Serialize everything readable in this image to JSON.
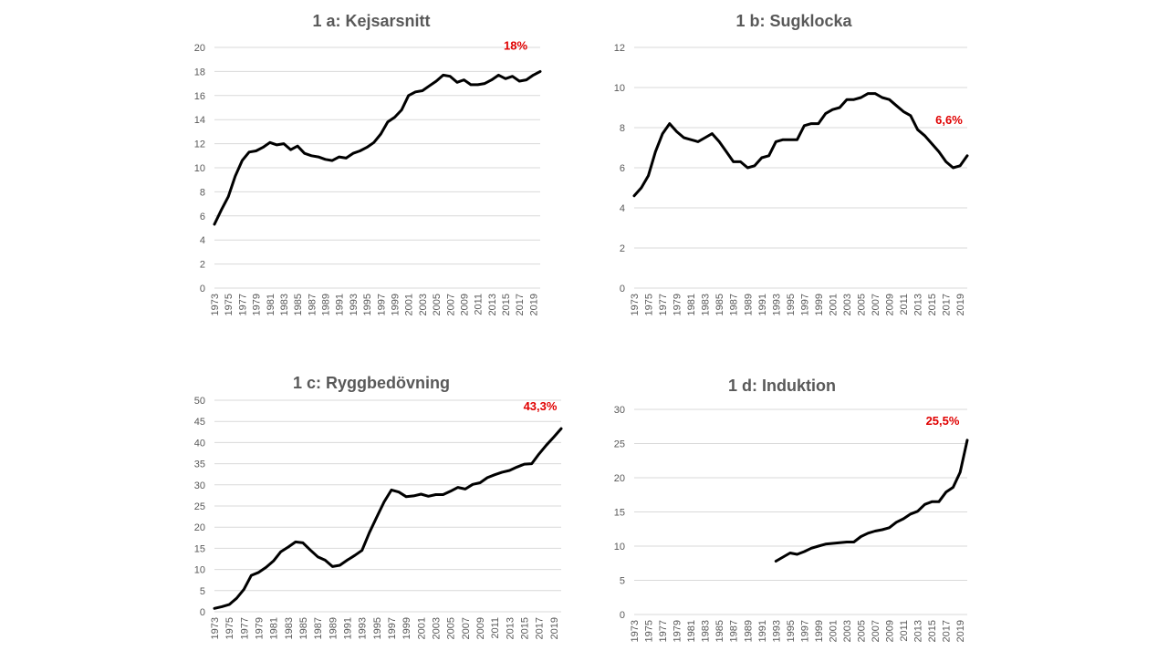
{
  "accent_color": "#e00000",
  "chart_data": [
    {
      "type": "line",
      "title": "1 a: Kejsarsnitt",
      "end_label": "18%",
      "ylim": [
        0,
        20
      ],
      "yticks": [
        0,
        2,
        4,
        6,
        8,
        10,
        12,
        14,
        16,
        18,
        20
      ],
      "xtick_labels": [
        "1973",
        "1975",
        "1977",
        "1979",
        "1981",
        "1983",
        "1985",
        "1987",
        "1989",
        "1991",
        "1993",
        "1995",
        "1997",
        "1999",
        "2001",
        "2003",
        "2005",
        "2007",
        "2009",
        "2011",
        "2013",
        "2015",
        "2017",
        "2019"
      ],
      "grid": true,
      "x": [
        1973,
        1974,
        1975,
        1976,
        1977,
        1978,
        1979,
        1980,
        1981,
        1982,
        1983,
        1984,
        1985,
        1986,
        1987,
        1988,
        1989,
        1990,
        1991,
        1992,
        1993,
        1994,
        1995,
        1996,
        1997,
        1998,
        1999,
        2000,
        2001,
        2002,
        2003,
        2004,
        2005,
        2006,
        2007,
        2008,
        2009,
        2010,
        2011,
        2012,
        2013,
        2014,
        2015,
        2016,
        2017,
        2018,
        2019,
        2020
      ],
      "values": [
        5.3,
        6.5,
        7.6,
        9.3,
        10.6,
        11.3,
        11.4,
        11.7,
        12.1,
        11.9,
        12.0,
        11.5,
        11.8,
        11.2,
        11.0,
        10.9,
        10.7,
        10.6,
        10.9,
        10.8,
        11.2,
        11.4,
        11.7,
        12.1,
        12.8,
        13.8,
        14.2,
        14.8,
        16.0,
        16.3,
        16.4,
        16.8,
        17.2,
        17.7,
        17.6,
        17.1,
        17.3,
        16.9,
        16.9,
        17.0,
        17.3,
        17.7,
        17.4,
        17.6,
        17.2,
        17.3,
        17.7,
        18.0
      ]
    },
    {
      "type": "line",
      "title": "1 b: Sugklocka",
      "end_label": "6,6%",
      "ylim": [
        0,
        12
      ],
      "yticks": [
        0,
        2,
        4,
        6,
        8,
        10,
        12
      ],
      "xtick_labels": [
        "1973",
        "1975",
        "1977",
        "1979",
        "1981",
        "1983",
        "1985",
        "1987",
        "1989",
        "1991",
        "1993",
        "1995",
        "1997",
        "1999",
        "2001",
        "2003",
        "2005",
        "2007",
        "2009",
        "2011",
        "2013",
        "2015",
        "2017",
        "2019"
      ],
      "grid": true,
      "x": [
        1973,
        1974,
        1975,
        1976,
        1977,
        1978,
        1979,
        1980,
        1981,
        1982,
        1983,
        1984,
        1985,
        1986,
        1987,
        1988,
        1989,
        1990,
        1991,
        1992,
        1993,
        1994,
        1995,
        1996,
        1997,
        1998,
        1999,
        2000,
        2001,
        2002,
        2003,
        2004,
        2005,
        2006,
        2007,
        2008,
        2009,
        2010,
        2011,
        2012,
        2013,
        2014,
        2015,
        2016,
        2017,
        2018,
        2019,
        2020
      ],
      "values": [
        4.6,
        5.0,
        5.6,
        6.8,
        7.7,
        8.2,
        7.8,
        7.5,
        7.4,
        7.3,
        7.5,
        7.7,
        7.3,
        6.8,
        6.3,
        6.3,
        6.0,
        6.1,
        6.5,
        6.6,
        7.3,
        7.4,
        7.4,
        7.4,
        8.1,
        8.2,
        8.2,
        8.7,
        8.9,
        9.0,
        9.4,
        9.4,
        9.5,
        9.7,
        9.7,
        9.5,
        9.4,
        9.1,
        8.8,
        8.6,
        7.9,
        7.6,
        7.2,
        6.8,
        6.3,
        6.0,
        6.1,
        6.6
      ]
    },
    {
      "type": "line",
      "title": "1 c: Ryggbedövning",
      "end_label": "43,3%",
      "ylim": [
        0,
        50
      ],
      "yticks": [
        0,
        5,
        10,
        15,
        20,
        25,
        30,
        35,
        40,
        45,
        50
      ],
      "xtick_labels": [
        "1973",
        "1975",
        "1977",
        "1979",
        "1981",
        "1983",
        "1985",
        "1987",
        "1989",
        "1991",
        "1993",
        "1995",
        "1997",
        "1999",
        "2001",
        "2003",
        "2005",
        "2007",
        "2009",
        "2011",
        "2013",
        "2015",
        "2017",
        "2019"
      ],
      "grid": true,
      "x": [
        1973,
        1974,
        1975,
        1976,
        1977,
        1978,
        1979,
        1980,
        1981,
        1982,
        1983,
        1984,
        1985,
        1986,
        1987,
        1988,
        1989,
        1990,
        1991,
        1992,
        1993,
        1994,
        1995,
        1996,
        1997,
        1998,
        1999,
        2000,
        2001,
        2002,
        2003,
        2004,
        2005,
        2006,
        2007,
        2008,
        2009,
        2010,
        2011,
        2012,
        2013,
        2014,
        2015,
        2016,
        2017,
        2018,
        2019,
        2020
      ],
      "values": [
        0.8,
        1.2,
        1.7,
        3.2,
        5.3,
        8.6,
        9.3,
        10.5,
        12.0,
        14.2,
        15.3,
        16.5,
        16.3,
        14.6,
        13.0,
        12.2,
        10.7,
        11.0,
        12.2,
        13.3,
        14.5,
        18.7,
        22.4,
        26.0,
        28.8,
        28.3,
        27.2,
        27.4,
        27.8,
        27.3,
        27.7,
        27.7,
        28.5,
        29.4,
        29.0,
        30.1,
        30.5,
        31.7,
        32.4,
        33.0,
        33.4,
        34.2,
        34.9,
        35.0,
        37.3,
        39.4,
        41.3,
        43.3
      ]
    },
    {
      "type": "line",
      "title": "1 d: Induktion",
      "end_label": "25,5%",
      "ylim": [
        0,
        30
      ],
      "yticks": [
        0,
        5,
        10,
        15,
        20,
        25,
        30
      ],
      "xtick_labels": [
        "1973",
        "1975",
        "1977",
        "1979",
        "1981",
        "1983",
        "1985",
        "1987",
        "1989",
        "1991",
        "1993",
        "1995",
        "1997",
        "1999",
        "2001",
        "2003",
        "2005",
        "2007",
        "2009",
        "2011",
        "2013",
        "2015",
        "2017",
        "2019"
      ],
      "grid": true,
      "x": [
        1993,
        1994,
        1995,
        1996,
        1997,
        1998,
        1999,
        2000,
        2001,
        2002,
        2003,
        2004,
        2005,
        2006,
        2007,
        2008,
        2009,
        2010,
        2011,
        2012,
        2013,
        2014,
        2015,
        2016,
        2017,
        2018,
        2019,
        2020
      ],
      "values": [
        7.8,
        8.4,
        9.0,
        8.8,
        9.2,
        9.7,
        10.0,
        10.3,
        10.4,
        10.5,
        10.6,
        10.6,
        11.4,
        11.9,
        12.2,
        12.4,
        12.7,
        13.5,
        14.0,
        14.7,
        15.1,
        16.1,
        16.5,
        16.5,
        17.9,
        18.6,
        20.8,
        25.5
      ]
    }
  ]
}
